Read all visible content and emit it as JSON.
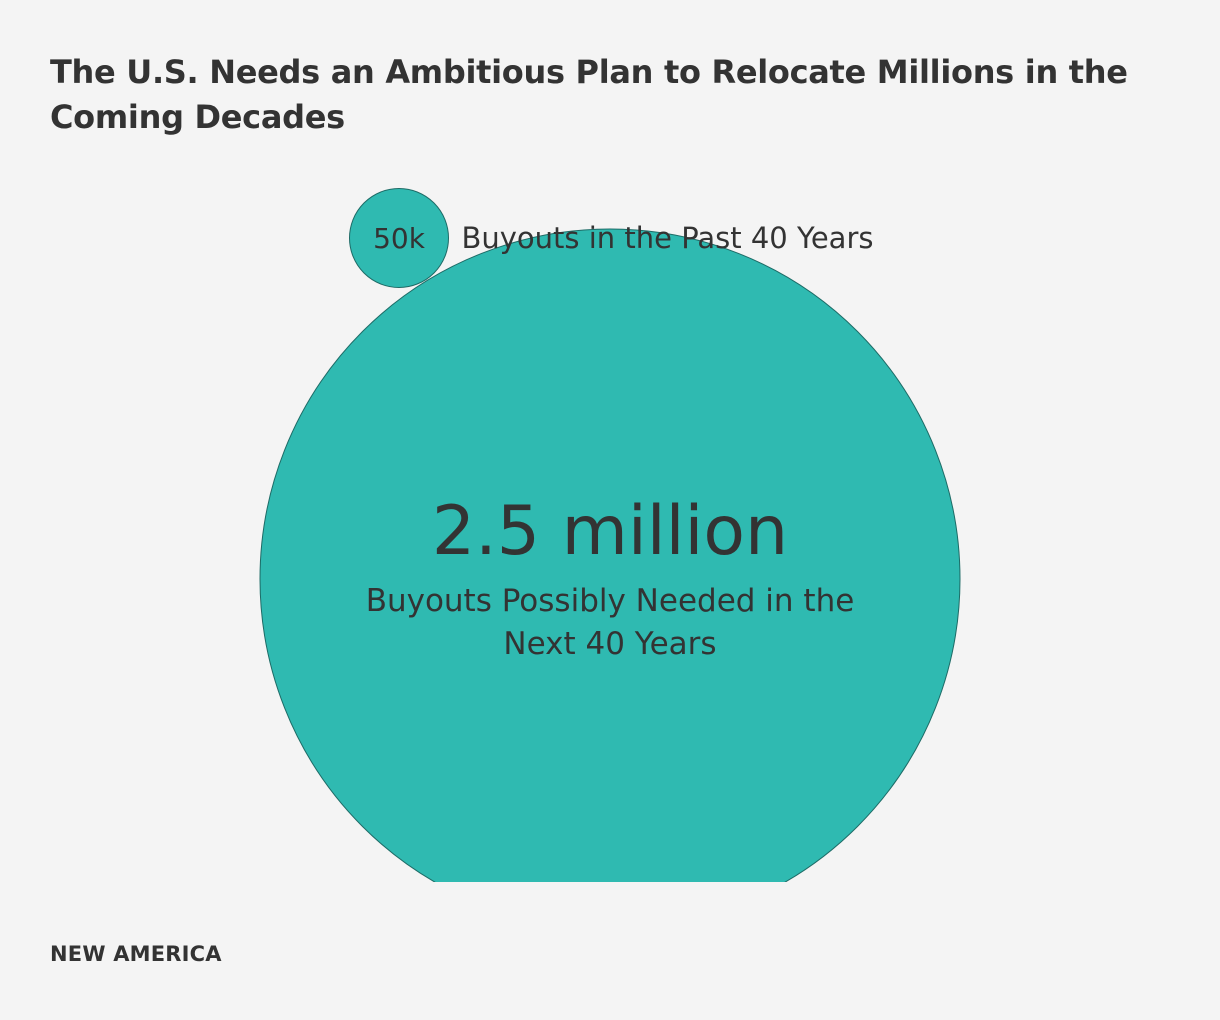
{
  "title": "The U.S. Needs an Ambitious Plan to Relocate Millions in the Coming Decades",
  "footer": {
    "brand": "NEW AMERICA"
  },
  "colors": {
    "background": "#f4f4f4",
    "bubble_fill": "#2fbab1",
    "bubble_stroke": "#1d6b66",
    "text": "#333333"
  },
  "chart_data": {
    "type": "bubble",
    "encoding": "area proportional to value",
    "items": [
      {
        "value": 50000,
        "value_label": "50k",
        "description": "Buyouts in the Past 40 Years"
      },
      {
        "value": 2500000,
        "value_label": "2.5 million",
        "description": "Buyouts Possibly Needed in the Next 40 Years"
      }
    ]
  }
}
